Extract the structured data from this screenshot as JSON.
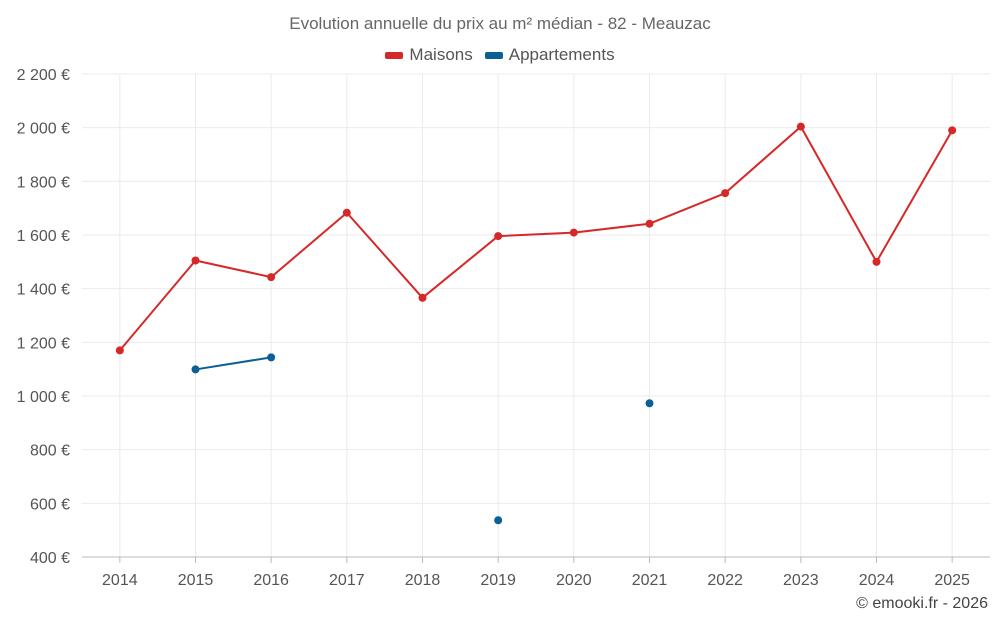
{
  "chart_data": {
    "type": "line",
    "title": "Evolution annuelle du prix au m² médian - 82 - Meauzac",
    "categories": [
      "2014",
      "2015",
      "2016",
      "2017",
      "2018",
      "2019",
      "2020",
      "2021",
      "2022",
      "2023",
      "2024",
      "2025"
    ],
    "series": [
      {
        "name": "Maisons",
        "color": "#d62828",
        "values": [
          1170,
          1505,
          1443,
          1683,
          1366,
          1596,
          1609,
          1642,
          1756,
          2004,
          1500,
          1990
        ]
      },
      {
        "name": "Appartements",
        "color": "#0b5f96",
        "values": [
          null,
          1099,
          1144,
          null,
          null,
          537,
          null,
          973,
          null,
          null,
          null,
          null
        ]
      }
    ],
    "y_ticks": [
      "400 €",
      "600 €",
      "800 €",
      "1 000 €",
      "1 200 €",
      "1 400 €",
      "1 600 €",
      "1 800 €",
      "2 000 €",
      "2 200 €"
    ],
    "ylim": [
      400,
      2200
    ],
    "xlabel": "",
    "ylabel": "",
    "grid": true,
    "legend_position": "top-center"
  },
  "credit": "© emooki.fr - 2026"
}
